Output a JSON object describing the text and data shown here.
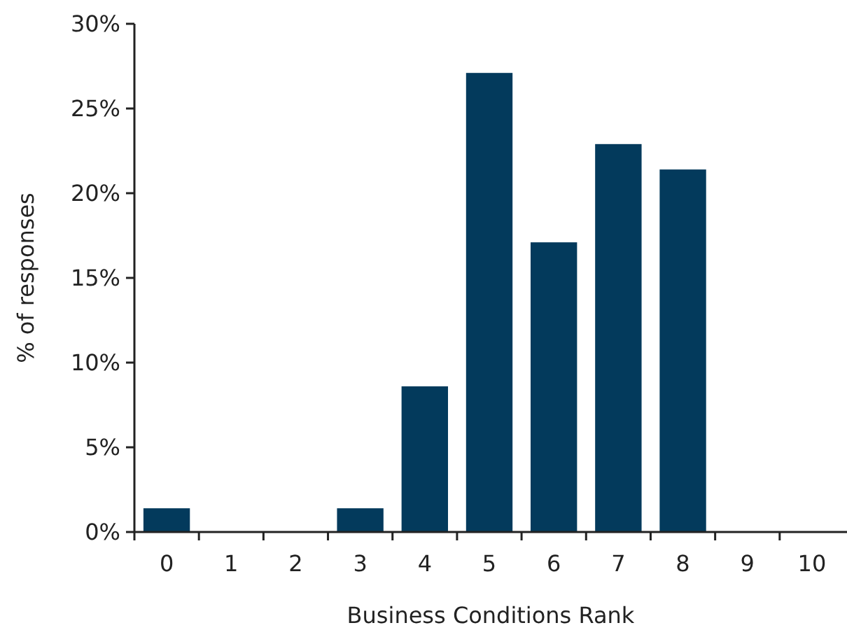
{
  "chart_data": {
    "type": "bar",
    "xlabel": "Business Conditions Rank",
    "ylabel": "% of responses",
    "categories": [
      "0",
      "1",
      "2",
      "3",
      "4",
      "5",
      "6",
      "7",
      "8",
      "9",
      "10"
    ],
    "values": [
      1.4,
      0,
      0,
      1.4,
      8.6,
      27.1,
      17.1,
      22.9,
      21.4,
      0,
      0
    ],
    "color": "#033a5c",
    "ylim": [
      0,
      30
    ],
    "yticks": [
      {
        "value": 0,
        "label": "0%"
      },
      {
        "value": 5,
        "label": "5%"
      },
      {
        "value": 10,
        "label": "10%"
      },
      {
        "value": 15,
        "label": "15%"
      },
      {
        "value": 20,
        "label": "20%"
      },
      {
        "value": 25,
        "label": "25%"
      },
      {
        "value": 30,
        "label": "30%"
      }
    ],
    "grid": false
  }
}
